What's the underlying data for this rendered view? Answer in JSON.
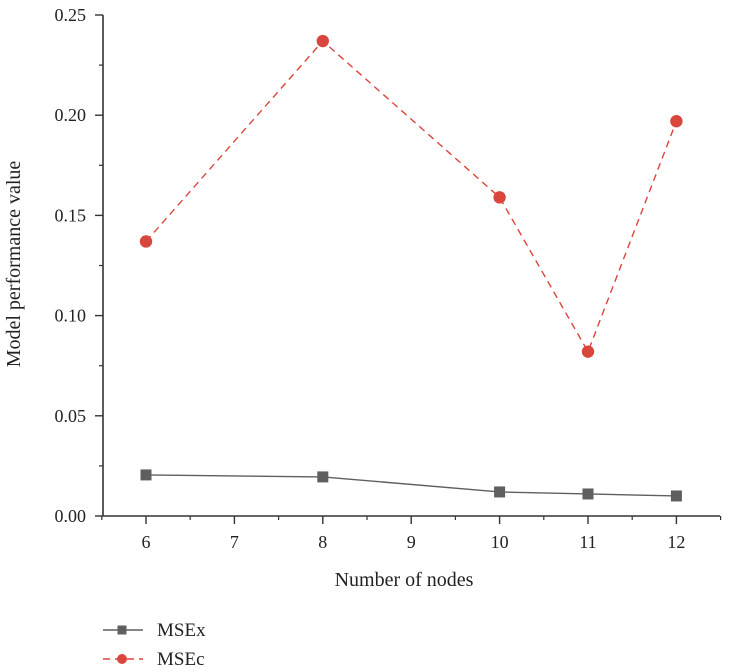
{
  "chart_data": {
    "type": "line",
    "xlabel": "Number of nodes",
    "ylabel": "Model performance value",
    "x_ticks": [
      "6",
      "7",
      "8",
      "9",
      "10",
      "11",
      "12"
    ],
    "y_ticks": [
      "0.00",
      "0.05",
      "0.10",
      "0.15",
      "0.20",
      "0.25"
    ],
    "ylim": [
      0,
      0.25
    ],
    "grid": false,
    "legend_placement": "bottom-left",
    "series": [
      {
        "name": "MSEx",
        "color": "#5f5f5f",
        "marker": "square",
        "line_style": "solid",
        "x": [
          "6",
          "8",
          "10",
          "11",
          "12"
        ],
        "values": [
          0.0205,
          0.0195,
          0.012,
          0.011,
          0.01
        ]
      },
      {
        "name": "MSEc",
        "color": "#d9463d",
        "marker": "circle",
        "line_style": "dashed",
        "x": [
          "6",
          "8",
          "10",
          "11",
          "12"
        ],
        "values": [
          0.137,
          0.237,
          0.159,
          0.082,
          0.197
        ]
      }
    ]
  }
}
